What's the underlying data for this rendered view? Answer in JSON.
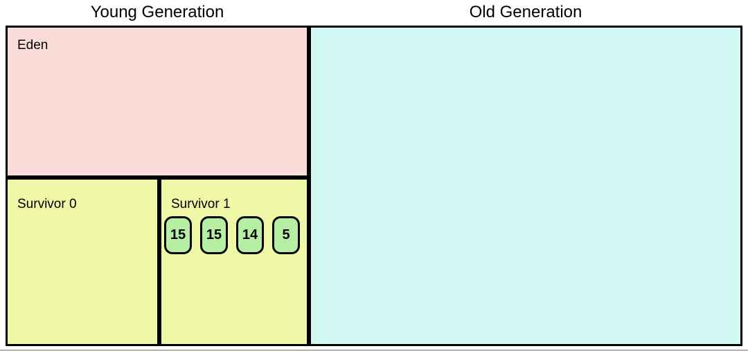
{
  "diagram": {
    "young_generation": {
      "title": "Young Generation",
      "eden": {
        "label": "Eden",
        "fill": "#fadcd8"
      },
      "survivor0": {
        "label": "Survivor 0",
        "fill": "#eef7a6"
      },
      "survivor1": {
        "label": "Survivor 1",
        "fill": "#eef7a6",
        "object_fill": "#b6efa3",
        "objects": [
          {
            "age": "15"
          },
          {
            "age": "15"
          },
          {
            "age": "14"
          },
          {
            "age": "5"
          }
        ]
      }
    },
    "old_generation": {
      "title": "Old Generation",
      "fill": "#d2f8f4"
    },
    "colors": {
      "border": "#000000",
      "background": "#ffffff",
      "bottom_divider": "#b0b0b0"
    }
  }
}
